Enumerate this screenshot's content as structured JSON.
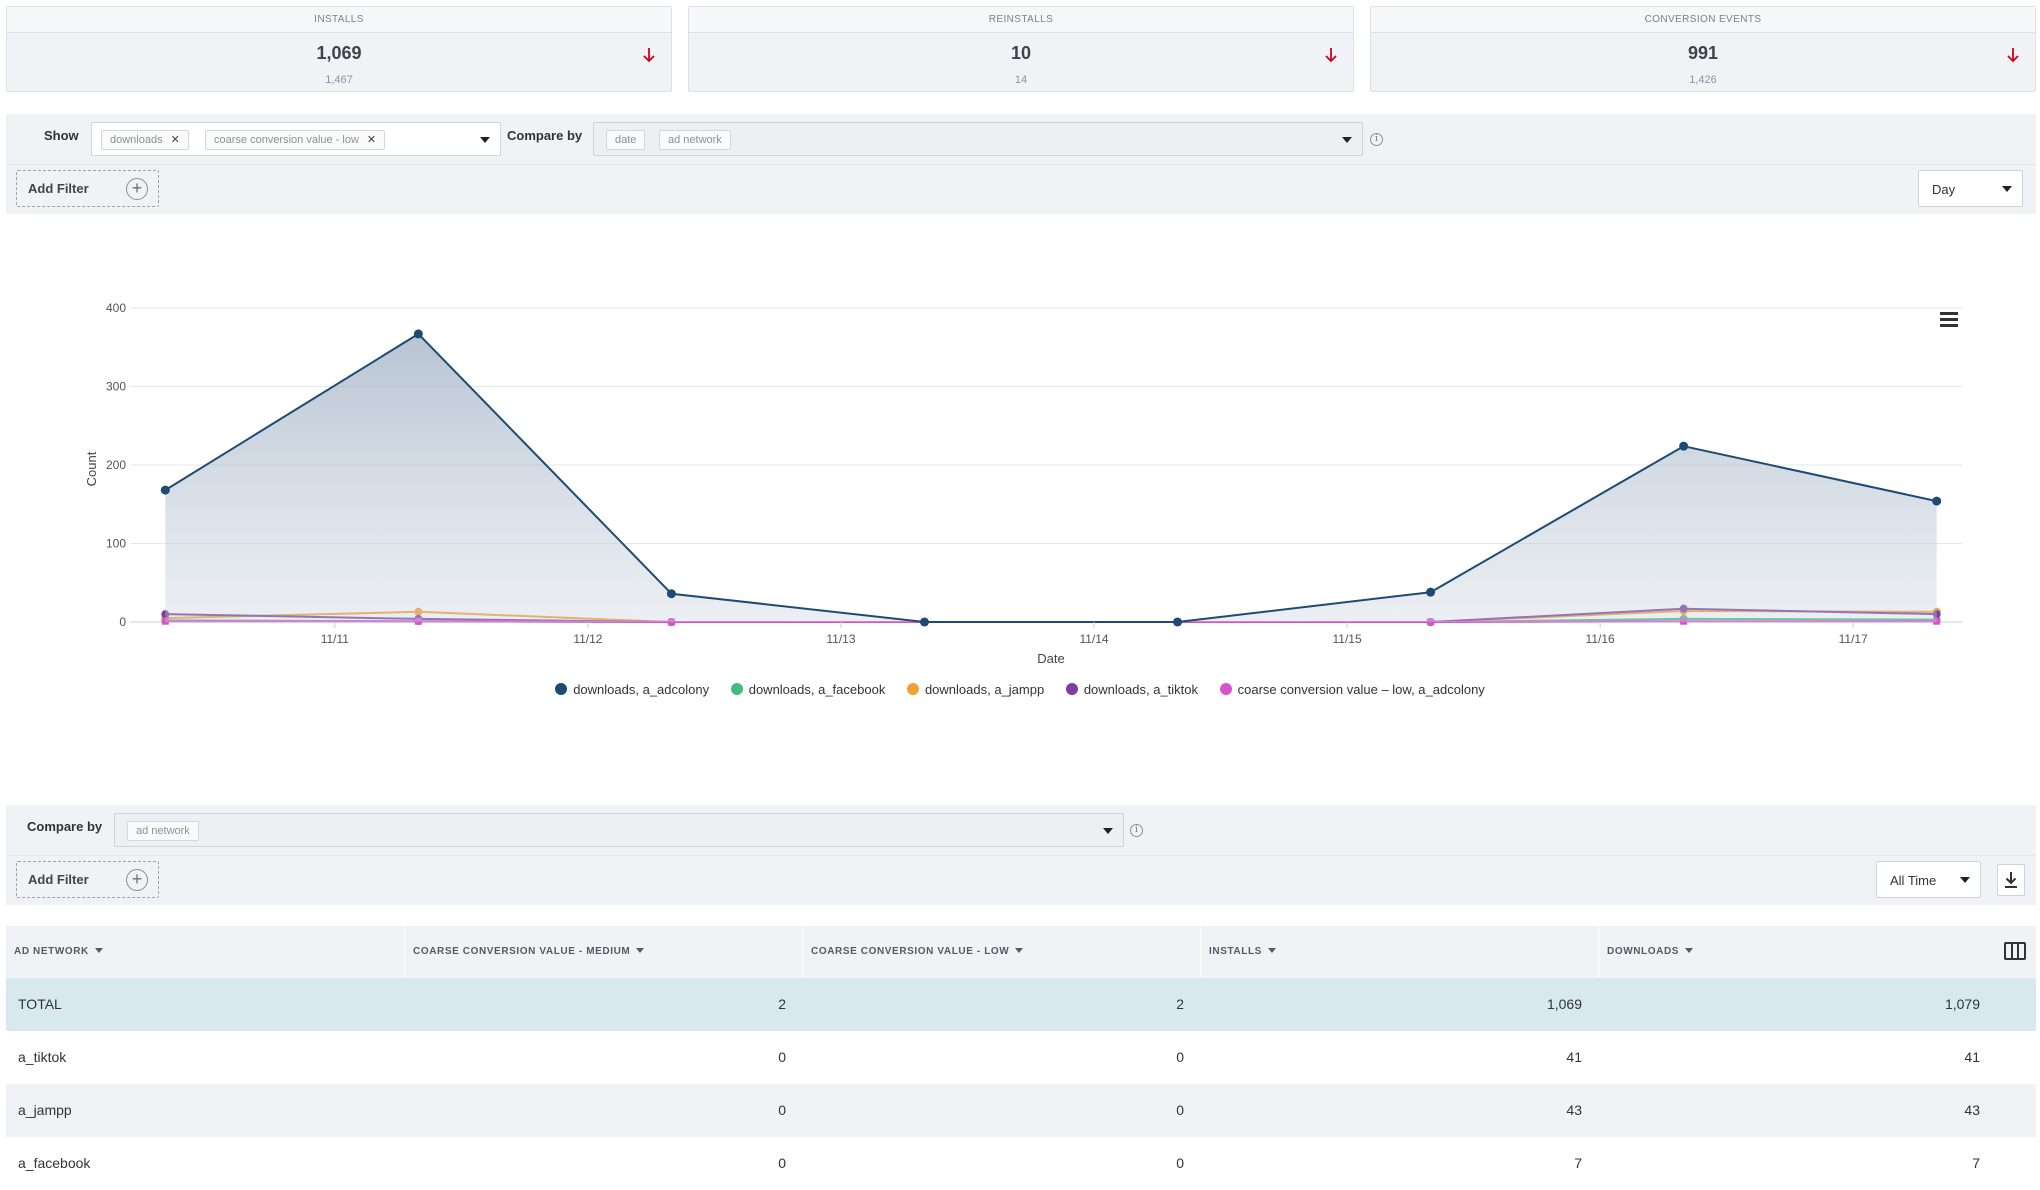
{
  "kpis": [
    {
      "label": "INSTALLS",
      "value": "1,069",
      "previous": "1,467",
      "trend": "down"
    },
    {
      "label": "REINSTALLS",
      "value": "10",
      "previous": "14",
      "trend": "down"
    },
    {
      "label": "CONVERSION EVENTS",
      "value": "991",
      "previous": "1,426",
      "trend": "down"
    }
  ],
  "colors": {
    "trend_down": "#d0021b",
    "adcolony": "#1f4a73",
    "facebook": "#3ebd7e",
    "jampp": "#f4a034",
    "tiktok": "#7a3fa0",
    "cv_low_adcolony": "#d656c9"
  },
  "chart_filters": {
    "show_label": "Show",
    "show_chips": [
      "downloads",
      "coarse conversion value - low"
    ],
    "compare_label": "Compare by",
    "compare_chips": [
      "date",
      "ad network"
    ],
    "add_filter_label": "Add Filter",
    "period": "Day"
  },
  "chart_data": {
    "type": "line",
    "title": "",
    "xlabel": "Date",
    "ylabel": "Count",
    "ylim": [
      0,
      400
    ],
    "yticks": [
      0,
      100,
      200,
      300,
      400
    ],
    "x_tick_labels": [
      "11/11",
      "11/12",
      "11/13",
      "11/14",
      "11/15",
      "11/16",
      "11/17"
    ],
    "x": [
      0,
      1,
      2,
      3,
      4,
      5,
      6,
      7
    ],
    "xlim": [
      -0.1,
      7.1
    ],
    "x_tick_positions": [
      0.67,
      1.67,
      2.67,
      3.67,
      4.67,
      5.67,
      6.67
    ],
    "grid": true,
    "legend": "bottom-center",
    "series": [
      {
        "name": "downloads, a_adcolony",
        "color": "#1f4a73",
        "area": true,
        "values": [
          168,
          367,
          36,
          0,
          0,
          38,
          224,
          154
        ]
      },
      {
        "name": "downloads, a_facebook",
        "color": "#3ebd7e",
        "area": false,
        "values": [
          2,
          1,
          0,
          0,
          0,
          0,
          4,
          3
        ]
      },
      {
        "name": "downloads, a_jampp",
        "color": "#f4a034",
        "area": false,
        "values": [
          5,
          13,
          0,
          0,
          0,
          0,
          14,
          13
        ]
      },
      {
        "name": "downloads, a_tiktok",
        "color": "#7a3fa0",
        "area": false,
        "values": [
          10,
          4,
          0,
          0,
          0,
          0,
          17,
          10
        ]
      },
      {
        "name": "coarse conversion value – low, a_adcolony",
        "color": "#d656c9",
        "area": false,
        "values": [
          1,
          1,
          0,
          0,
          0,
          0,
          1,
          1
        ]
      }
    ]
  },
  "table_filters": {
    "compare_label": "Compare by",
    "compare_chips": [
      "ad network"
    ],
    "add_filter_label": "Add Filter",
    "period": "All Time"
  },
  "table": {
    "columns": [
      "AD NETWORK",
      "COARSE CONVERSION VALUE - MEDIUM",
      "COARSE CONVERSION VALUE - LOW",
      "INSTALLS",
      "DOWNLOADS"
    ],
    "rows": [
      {
        "name": "TOTAL",
        "medium": "2",
        "low": "2",
        "installs": "1,069",
        "downloads": "1,079"
      },
      {
        "name": "a_tiktok",
        "medium": "0",
        "low": "0",
        "installs": "41",
        "downloads": "41"
      },
      {
        "name": "a_jampp",
        "medium": "0",
        "low": "0",
        "installs": "43",
        "downloads": "43"
      },
      {
        "name": "a_facebook",
        "medium": "0",
        "low": "0",
        "installs": "7",
        "downloads": "7"
      }
    ]
  }
}
